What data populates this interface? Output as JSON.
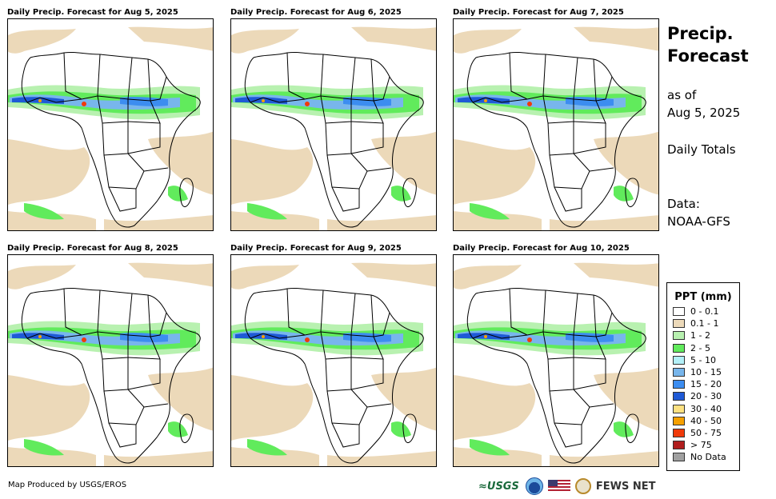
{
  "panels": [
    {
      "title": "Daily Precip. Forecast for Aug 5, 2025"
    },
    {
      "title": "Daily Precip. Forecast for Aug 6, 2025"
    },
    {
      "title": "Daily Precip. Forecast for Aug 7, 2025"
    },
    {
      "title": "Daily Precip. Forecast for Aug 8, 2025"
    },
    {
      "title": "Daily Precip. Forecast for Aug 9, 2025"
    },
    {
      "title": "Daily Precip. Forecast for Aug 10, 2025"
    }
  ],
  "sidebar": {
    "title_line1": "Precip.",
    "title_line2": "Forecast",
    "asof_line1": "as of",
    "asof_line2": "Aug 5, 2025",
    "totals": "Daily Totals",
    "data_line1": "Data:",
    "data_line2": "NOAA-GFS"
  },
  "legend": {
    "title": "PPT (mm)",
    "items": [
      {
        "label": "0 - 0.1",
        "color": "#ffffff"
      },
      {
        "label": "0.1 - 1",
        "color": "#ecd9b9"
      },
      {
        "label": "1 - 2",
        "color": "#b8f1b0"
      },
      {
        "label": "2 - 5",
        "color": "#61eb5c"
      },
      {
        "label": "5 - 10",
        "color": "#b3f0f8"
      },
      {
        "label": "10 - 15",
        "color": "#78b6ec"
      },
      {
        "label": "15 - 20",
        "color": "#3c8df0"
      },
      {
        "label": "20 - 30",
        "color": "#1f5ad6"
      },
      {
        "label": "30 - 40",
        "color": "#fde181"
      },
      {
        "label": "40 - 50",
        "color": "#f5a000"
      },
      {
        "label": "50 - 75",
        "color": "#f03a0a"
      },
      {
        "label": "> 75",
        "color": "#b01e1e"
      },
      {
        "label": "No Data",
        "color": "#a0a0a0"
      }
    ]
  },
  "footer": {
    "credit": "Map Produced by USGS/EROS",
    "usgs": "≈USGS",
    "fews": "FEWS NET"
  },
  "logos": {
    "noaa": "noaa-logo",
    "flag": "us-flag-icon",
    "seal": "state-dept-seal-icon"
  }
}
